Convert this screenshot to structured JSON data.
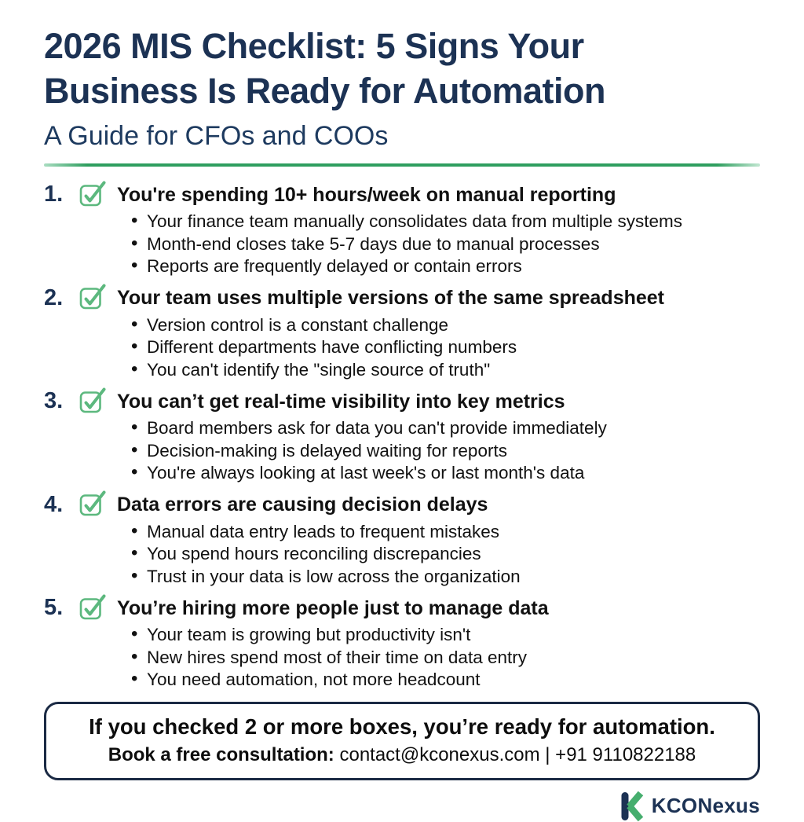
{
  "header": {
    "title_lines": [
      "2026 MIS Checklist: 5 Signs Your",
      "Business Is Ready for Automation"
    ],
    "subtitle": "A Guide for CFOs and COOs"
  },
  "checklist": {
    "items": [
      {
        "number": "1.",
        "heading": "You're spending 10+ hours/week on manual reporting",
        "bullets": [
          "Your finance team manually consolidates data from multiple systems",
          "Month-end closes take 5-7 days due to manual processes",
          "Reports are frequently delayed or contain errors"
        ]
      },
      {
        "number": "2.",
        "heading": "Your team uses multiple versions of the same spreadsheet",
        "bullets": [
          "Version control is a constant challenge",
          "Different departments have conflicting numbers",
          "You can't identify the \"single source of truth\""
        ]
      },
      {
        "number": "3.",
        "heading": "You can’t get real-time visibility into key metrics",
        "bullets": [
          "Board members ask for data you can't provide immediately",
          "Decision-making is delayed waiting for reports",
          "You're always looking at last week's or last month's data"
        ]
      },
      {
        "number": "4.",
        "heading": "Data errors are causing decision delays",
        "bullets": [
          "Manual data entry leads to frequent mistakes",
          "You spend hours reconciling discrepancies",
          "Trust in your data is low across the organization"
        ]
      },
      {
        "number": "5.",
        "heading": "You’re hiring more people just to manage data",
        "bullets": [
          "Your team is growing but productivity isn't",
          "New hires spend most of their time on data entry",
          "You need automation, not more headcount"
        ]
      }
    ]
  },
  "cta": {
    "headline": "If you checked 2 or more boxes, you’re ready for automation.",
    "contact_label": "Book a free consultation:",
    "contact_detail": " contact@kconexus.com | +91 9110822188"
  },
  "logo": {
    "text": "KCONexus"
  },
  "colors": {
    "navy": "#1c3254",
    "text": "#111111",
    "green": "#3fa76a",
    "checkbox_green": "#5cb87e",
    "box_border": "#1b2a44"
  }
}
